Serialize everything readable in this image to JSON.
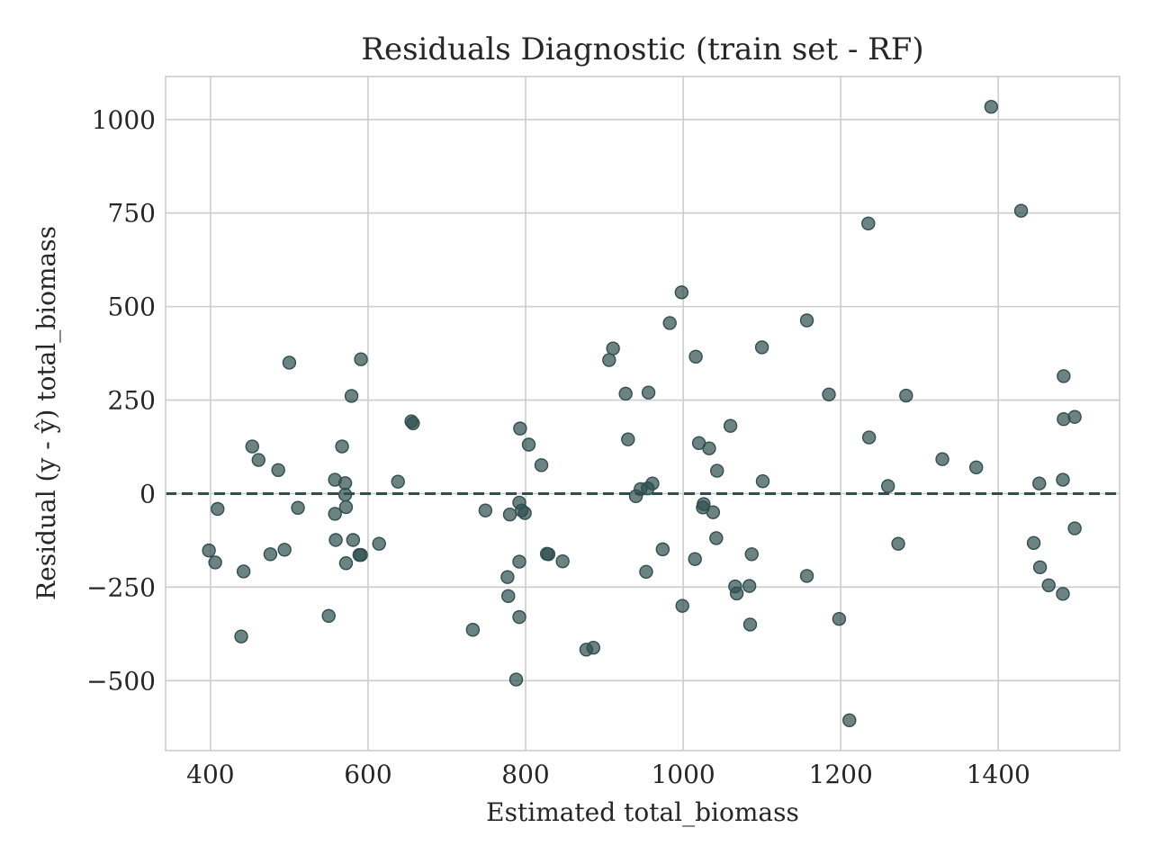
{
  "chart_data": {
    "type": "scatter",
    "title": "Residuals Diagnostic (train set - RF)",
    "xlabel": "Estimated total_biomass",
    "ylabel": "Residual (y - ŷ) total_biomass",
    "xlim": [
      343,
      1554
    ],
    "ylim": [
      -687,
      1115
    ],
    "xticks": [
      400,
      600,
      800,
      1000,
      1200,
      1400
    ],
    "yticks": [
      -500,
      -250,
      0,
      250,
      500,
      750,
      1000
    ],
    "xtick_labels": [
      "400",
      "600",
      "800",
      "1000",
      "1200",
      "1400"
    ],
    "ytick_labels": [
      "−500",
      "−250",
      "0",
      "250",
      "500",
      "750",
      "1000"
    ],
    "grid": true,
    "reference_line": {
      "y": 0,
      "style": "dashed",
      "color": "#2f4f4f"
    },
    "point_color": "#2f4f4f",
    "points": [
      {
        "x": 398,
        "y": -152
      },
      {
        "x": 406,
        "y": -184
      },
      {
        "x": 409,
        "y": -41
      },
      {
        "x": 439,
        "y": -382
      },
      {
        "x": 442,
        "y": -208
      },
      {
        "x": 453,
        "y": 126
      },
      {
        "x": 461,
        "y": 90
      },
      {
        "x": 476,
        "y": -162
      },
      {
        "x": 486,
        "y": 63
      },
      {
        "x": 494,
        "y": -150
      },
      {
        "x": 500,
        "y": 350
      },
      {
        "x": 511,
        "y": -38
      },
      {
        "x": 550,
        "y": -327
      },
      {
        "x": 558,
        "y": 37
      },
      {
        "x": 558,
        "y": -54
      },
      {
        "x": 559,
        "y": -124
      },
      {
        "x": 567,
        "y": 126
      },
      {
        "x": 571,
        "y": 28
      },
      {
        "x": 571,
        "y": -3
      },
      {
        "x": 572,
        "y": -36
      },
      {
        "x": 572,
        "y": -186
      },
      {
        "x": 579,
        "y": 261
      },
      {
        "x": 581,
        "y": -124
      },
      {
        "x": 589,
        "y": -164
      },
      {
        "x": 591,
        "y": -164
      },
      {
        "x": 591,
        "y": 359
      },
      {
        "x": 614,
        "y": -134
      },
      {
        "x": 638,
        "y": 32
      },
      {
        "x": 655,
        "y": 193
      },
      {
        "x": 657,
        "y": 188
      },
      {
        "x": 733,
        "y": -364
      },
      {
        "x": 749,
        "y": -45
      },
      {
        "x": 777,
        "y": -223
      },
      {
        "x": 778,
        "y": -274
      },
      {
        "x": 780,
        "y": -56
      },
      {
        "x": 788,
        "y": -497
      },
      {
        "x": 792,
        "y": -330
      },
      {
        "x": 792,
        "y": -182
      },
      {
        "x": 792,
        "y": -24
      },
      {
        "x": 793,
        "y": 174
      },
      {
        "x": 795,
        "y": -45
      },
      {
        "x": 799,
        "y": -52
      },
      {
        "x": 804,
        "y": 131
      },
      {
        "x": 820,
        "y": 76
      },
      {
        "x": 827,
        "y": -161
      },
      {
        "x": 829,
        "y": -162
      },
      {
        "x": 847,
        "y": -181
      },
      {
        "x": 877,
        "y": -417
      },
      {
        "x": 886,
        "y": -412
      },
      {
        "x": 906,
        "y": 357
      },
      {
        "x": 911,
        "y": 388
      },
      {
        "x": 927,
        "y": 267
      },
      {
        "x": 930,
        "y": 145
      },
      {
        "x": 940,
        "y": -7
      },
      {
        "x": 946,
        "y": 12
      },
      {
        "x": 953,
        "y": -209
      },
      {
        "x": 955,
        "y": 14
      },
      {
        "x": 956,
        "y": 270
      },
      {
        "x": 961,
        "y": 27
      },
      {
        "x": 974,
        "y": -149
      },
      {
        "x": 983,
        "y": 456
      },
      {
        "x": 998,
        "y": 538
      },
      {
        "x": 999,
        "y": -300
      },
      {
        "x": 1015,
        "y": -175
      },
      {
        "x": 1016,
        "y": 366
      },
      {
        "x": 1020,
        "y": 135
      },
      {
        "x": 1025,
        "y": -37
      },
      {
        "x": 1026,
        "y": -28
      },
      {
        "x": 1033,
        "y": 121
      },
      {
        "x": 1038,
        "y": -50
      },
      {
        "x": 1042,
        "y": -119
      },
      {
        "x": 1043,
        "y": 61
      },
      {
        "x": 1060,
        "y": 181
      },
      {
        "x": 1066,
        "y": -248
      },
      {
        "x": 1068,
        "y": -267
      },
      {
        "x": 1084,
        "y": -247
      },
      {
        "x": 1085,
        "y": -350
      },
      {
        "x": 1087,
        "y": -162
      },
      {
        "x": 1100,
        "y": 391
      },
      {
        "x": 1101,
        "y": 33
      },
      {
        "x": 1157,
        "y": 463
      },
      {
        "x": 1157,
        "y": -220
      },
      {
        "x": 1185,
        "y": 265
      },
      {
        "x": 1198,
        "y": -335
      },
      {
        "x": 1211,
        "y": -606
      },
      {
        "x": 1235,
        "y": 722
      },
      {
        "x": 1236,
        "y": 150
      },
      {
        "x": 1260,
        "y": 20
      },
      {
        "x": 1273,
        "y": -134
      },
      {
        "x": 1283,
        "y": 262
      },
      {
        "x": 1329,
        "y": 92
      },
      {
        "x": 1372,
        "y": 70
      },
      {
        "x": 1391,
        "y": 1034
      },
      {
        "x": 1429,
        "y": 756
      },
      {
        "x": 1445,
        "y": -132
      },
      {
        "x": 1452,
        "y": 27
      },
      {
        "x": 1453,
        "y": -197
      },
      {
        "x": 1464,
        "y": -245
      },
      {
        "x": 1482,
        "y": 37
      },
      {
        "x": 1482,
        "y": -268
      },
      {
        "x": 1483,
        "y": 314
      },
      {
        "x": 1483,
        "y": 199
      },
      {
        "x": 1497,
        "y": 205
      },
      {
        "x": 1497,
        "y": -93
      }
    ]
  }
}
